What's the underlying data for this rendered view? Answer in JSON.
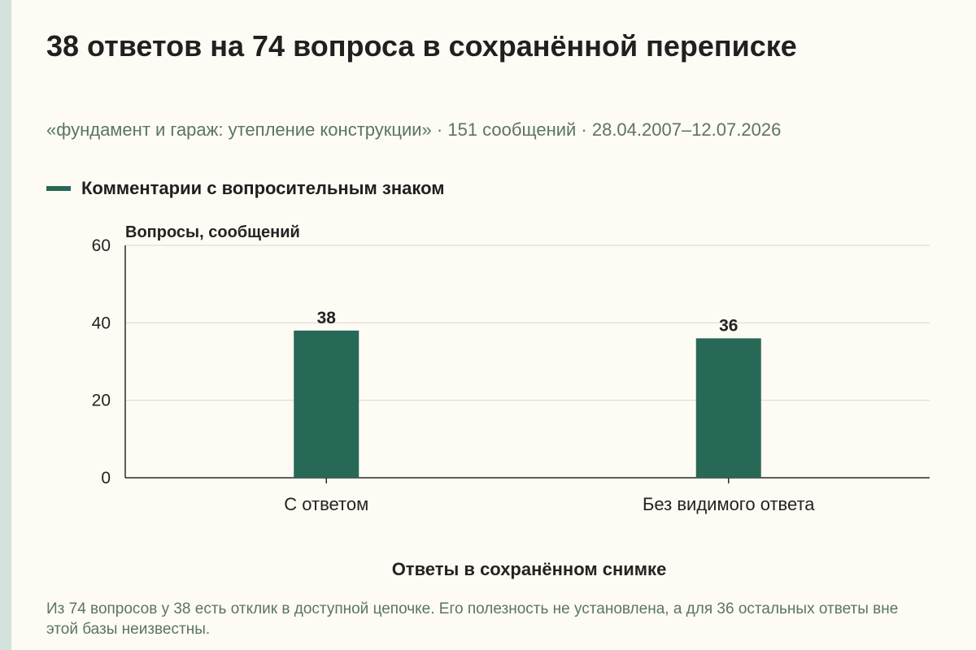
{
  "header": {
    "title": "38 ответов на 74 вопроса в сохранённой переписке",
    "subtitle": "«фундамент и гараж: утепление конструкции» · 151 сообщений · 28.04.2007–12.07.2026"
  },
  "footer": {
    "note": "Из 74 вопросов у 38 есть отклик в доступной цепочке. Его полезность не установлена, а для 36 остальных ответы вне этой базы неизвестны."
  },
  "colors": {
    "accent": "#276956",
    "grid": "#d9d9d2",
    "axis": "#2a2a2a",
    "text": "#232323"
  },
  "chart_data": {
    "type": "bar",
    "categories": [
      "С ответом",
      "Без видимого ответа"
    ],
    "series": [
      {
        "name": "Комментарии с вопросительным знаком",
        "values": [
          38,
          36
        ]
      }
    ],
    "value_labels": [
      "38",
      "36"
    ],
    "title": "38 ответов на 74 вопроса в сохранённой переписке",
    "xlabel": "Ответы в сохранённом снимке",
    "ylabel": "Вопросы, сообщений",
    "ylim": [
      0,
      60
    ],
    "yticks": [
      0,
      20,
      40,
      60
    ],
    "grid": true,
    "legend": "top-left"
  }
}
